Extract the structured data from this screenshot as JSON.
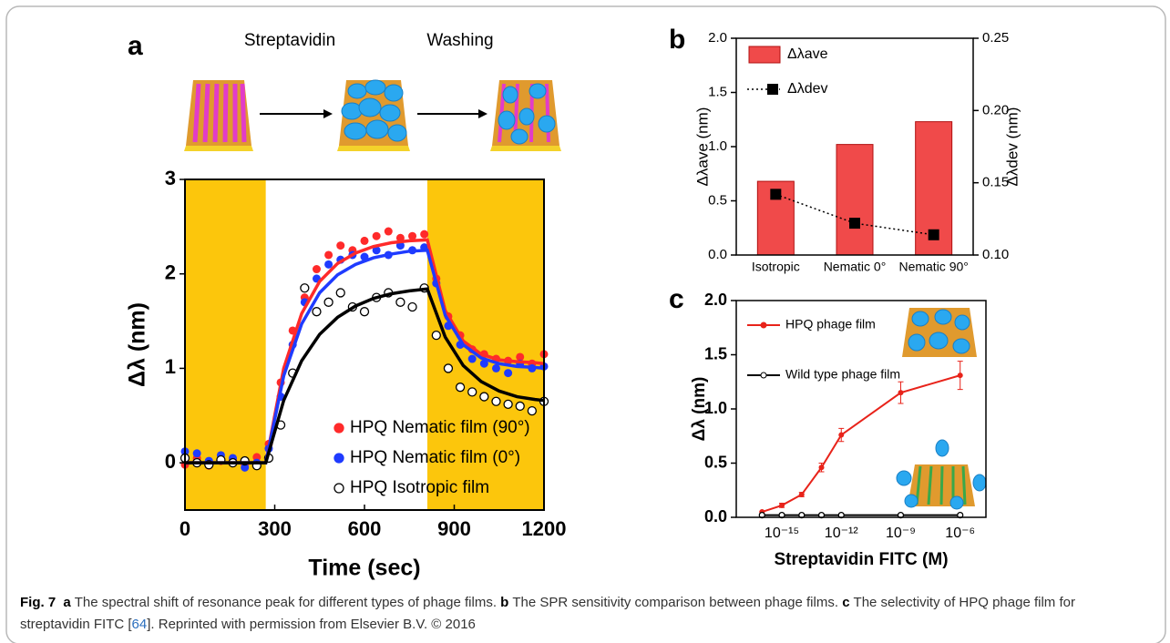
{
  "chart_data": [
    {
      "type": "scatter",
      "panel": "a",
      "x_label": "Time (sec)",
      "y_label": "Δλ (nm)",
      "step_labels": [
        "Streptavidin",
        "Washing"
      ],
      "xlim": [
        0,
        1200
      ],
      "xticks": [
        0,
        300,
        600,
        900,
        1200
      ],
      "ylim": [
        -0.5,
        3
      ],
      "yticks": [
        0,
        1,
        2,
        3
      ],
      "shaded_regions": [
        [
          0,
          270
        ],
        [
          810,
          1200
        ]
      ],
      "shade_color": "#fcc60c",
      "x": [
        0,
        40,
        80,
        120,
        160,
        200,
        240,
        280,
        320,
        360,
        400,
        440,
        480,
        520,
        560,
        600,
        640,
        680,
        720,
        760,
        800,
        840,
        880,
        920,
        960,
        1000,
        1040,
        1080,
        1120,
        1160,
        1200
      ],
      "fit_x": [
        0,
        270,
        330,
        390,
        450,
        510,
        570,
        630,
        690,
        750,
        810,
        870,
        930,
        990,
        1050,
        1110,
        1170,
        1200
      ],
      "series": [
        {
          "name": "HPQ Nematic film (90°)",
          "color": "#ff2a2a",
          "marker": "filled",
          "values": [
            -0.02,
            0.05,
            -0.03,
            0.02,
            0.04,
            -0.02,
            0.06,
            0.2,
            0.85,
            1.4,
            1.75,
            2.05,
            2.2,
            2.3,
            2.25,
            2.35,
            2.4,
            2.45,
            2.38,
            2.4,
            2.42,
            1.95,
            1.55,
            1.35,
            1.2,
            1.15,
            1.1,
            1.08,
            1.12,
            1.05,
            1.15
          ],
          "fit": [
            0,
            0,
            1.0,
            1.58,
            1.92,
            2.11,
            2.22,
            2.29,
            2.33,
            2.35,
            2.36,
            1.61,
            1.29,
            1.15,
            1.09,
            1.07,
            1.06,
            1.05
          ]
        },
        {
          "name": "HPQ Nematic film (0°)",
          "color": "#1f3bff",
          "marker": "filled",
          "values": [
            0.12,
            0.1,
            0.02,
            0.08,
            0.05,
            -0.05,
            0.0,
            0.15,
            0.7,
            1.25,
            1.7,
            1.95,
            2.1,
            2.15,
            2.2,
            2.18,
            2.25,
            2.2,
            2.3,
            2.25,
            2.28,
            1.9,
            1.45,
            1.25,
            1.1,
            1.05,
            1.0,
            0.95,
            1.05,
            1.0,
            1.02
          ],
          "fit": [
            0,
            0,
            0.92,
            1.47,
            1.8,
            1.99,
            2.1,
            2.17,
            2.21,
            2.24,
            2.25,
            1.56,
            1.25,
            1.11,
            1.05,
            1.02,
            1.01,
            1.0
          ]
        },
        {
          "name": "HPQ Isotropic film",
          "color": "#000000",
          "marker": "open",
          "values": [
            0.05,
            0.0,
            -0.02,
            0.03,
            0.0,
            0.02,
            -0.03,
            0.05,
            0.4,
            0.95,
            1.85,
            1.6,
            1.7,
            1.8,
            1.65,
            1.6,
            1.75,
            1.8,
            1.7,
            1.65,
            1.85,
            1.35,
            1.0,
            0.8,
            0.75,
            0.7,
            0.65,
            0.62,
            0.6,
            0.55,
            0.65
          ],
          "fit": [
            0,
            0,
            0.66,
            1.08,
            1.36,
            1.54,
            1.66,
            1.74,
            1.79,
            1.82,
            1.84,
            1.33,
            1.03,
            0.86,
            0.76,
            0.7,
            0.67,
            0.66
          ]
        }
      ]
    },
    {
      "type": "bar",
      "panel": "b",
      "y_label": "Δλave (nm)",
      "y2_label": "Δλdev (nm)",
      "categories": [
        "Isotropic",
        "Nematic 0°",
        "Nematic 90°"
      ],
      "ylim": [
        0,
        2
      ],
      "yticks": [
        {
          "value": 0,
          "label": "0.0"
        },
        {
          "value": 0.5,
          "label": "0.5"
        },
        {
          "value": 1,
          "label": "1.0"
        },
        {
          "value": 1.5,
          "label": "1.5"
        },
        {
          "value": 2,
          "label": "2.0"
        }
      ],
      "y2lim": [
        0.1,
        0.25
      ],
      "y2ticks": [
        {
          "value": 0.1,
          "label": "0.10"
        },
        {
          "value": 0.15,
          "label": "0.15"
        },
        {
          "value": 0.2,
          "label": "0.20"
        },
        {
          "value": 0.25,
          "label": "0.25"
        }
      ],
      "series": [
        {
          "name": "Δλave",
          "type": "bar",
          "color": "#f04a4a",
          "values": [
            0.68,
            1.02,
            1.23
          ]
        },
        {
          "name": "Δλdev",
          "type": "line",
          "axis": "y2",
          "color": "#000000",
          "values": [
            0.142,
            0.122,
            0.114
          ]
        }
      ]
    },
    {
      "type": "line",
      "panel": "c",
      "x_label": "Streptavidin FITC (M)",
      "y_label": "Δλ (nm)",
      "xscale": "log",
      "xlim": [
        5e-18,
        2e-05
      ],
      "xticks": [
        {
          "value": 1e-15,
          "label": "10⁻¹⁵"
        },
        {
          "value": 1e-12,
          "label": "10⁻¹²"
        },
        {
          "value": 1e-09,
          "label": "10⁻⁹"
        },
        {
          "value": 1e-06,
          "label": "10⁻⁶"
        }
      ],
      "ylim": [
        0,
        2
      ],
      "yticks": [
        {
          "value": 0,
          "label": "0.0"
        },
        {
          "value": 0.5,
          "label": "0.5"
        },
        {
          "value": 1,
          "label": "1.0"
        },
        {
          "value": 1.5,
          "label": "1.5"
        },
        {
          "value": 2,
          "label": "2.0"
        }
      ],
      "x": [
        1e-16,
        1e-15,
        1e-14,
        1e-13,
        1e-12,
        1e-09,
        1e-06
      ],
      "series": [
        {
          "name": "HPQ phage film",
          "color": "#e8231a",
          "marker": "filled",
          "values": [
            0.05,
            0.11,
            0.21,
            0.46,
            0.76,
            1.15,
            1.31
          ],
          "errors": [
            0,
            0.02,
            0.02,
            0.04,
            0.06,
            0.1,
            0.13
          ]
        },
        {
          "name": "Wild type phage film",
          "color": "#000000",
          "marker": "open",
          "values": [
            0.02,
            0.02,
            0.02,
            0.02,
            0.02,
            0.02,
            0.02
          ]
        }
      ]
    }
  ],
  "caption": {
    "label": "Fig. 7",
    "a": "a",
    "a_text": "The spectral shift of resonance peak for different types of phage films.",
    "b": "b",
    "b_text": "The SPR sensitivity comparison between phage films.",
    "c": "c",
    "c_text": "The selectivity of HPQ phage film for streptavidin FITC [",
    "ref": "64",
    "c_after": "]. Reprinted with permission from Elsevier B.V. © 2016"
  }
}
